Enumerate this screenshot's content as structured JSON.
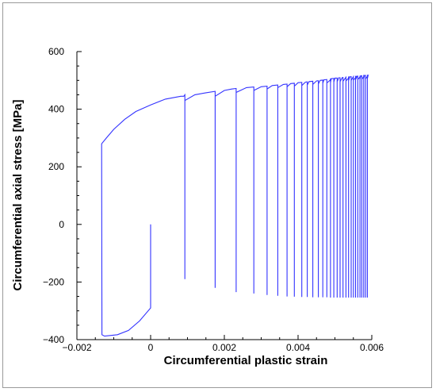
{
  "chart_data": {
    "type": "line",
    "title": "",
    "xlabel": "Circumferential plastic strain",
    "ylabel": "Circumferential axial stress [MPa]",
    "xlim": [
      -0.002,
      0.006
    ],
    "ylim": [
      -400,
      600
    ],
    "xticks": [
      -0.002,
      0,
      0.002,
      0.004,
      0.006
    ],
    "xtick_labels": [
      "−0.002",
      "0",
      "0.002",
      "0.004",
      "0.006"
    ],
    "yticks": [
      -400,
      -200,
      0,
      200,
      400,
      600
    ],
    "ytick_labels": [
      "−400",
      "−200",
      "0",
      "200",
      "400",
      "600"
    ],
    "grid": false,
    "line_color": "#3333ff",
    "series": [
      {
        "name": "",
        "points": [
          [
            0.0,
            0
          ],
          [
            0.0,
            -290
          ],
          [
            -0.0003,
            -335
          ],
          [
            -0.0006,
            -368
          ],
          [
            -0.0009,
            -383
          ],
          [
            -0.00125,
            -388
          ],
          [
            -0.00132,
            -383
          ],
          [
            -0.00133,
            280
          ],
          [
            -0.0012,
            300
          ],
          [
            -0.001,
            330
          ],
          [
            -0.0007,
            365
          ],
          [
            -0.0004,
            392
          ],
          [
            0.0,
            415
          ],
          [
            0.0004,
            435
          ],
          [
            0.00082,
            445
          ],
          [
            0.0009,
            445
          ],
          [
            0.00093,
            450
          ],
          [
            0.00093,
            -190
          ],
          [
            0.00093,
            430
          ],
          [
            0.0012,
            450
          ],
          [
            0.0015,
            457
          ],
          [
            0.00175,
            462
          ],
          [
            0.00175,
            -220
          ],
          [
            0.00175,
            445
          ],
          [
            0.002,
            465
          ],
          [
            0.0022,
            470
          ],
          [
            0.00232,
            472
          ],
          [
            0.00232,
            -235
          ],
          [
            0.00232,
            458
          ],
          [
            0.0026,
            475
          ],
          [
            0.0028,
            477
          ],
          [
            0.0028,
            -240
          ],
          [
            0.0028,
            465
          ],
          [
            0.003,
            478
          ],
          [
            0.00316,
            480
          ],
          [
            0.00316,
            -245
          ],
          [
            0.00316,
            470
          ],
          [
            0.0033,
            482
          ],
          [
            0.00345,
            484
          ],
          [
            0.00345,
            -248
          ],
          [
            0.00345,
            475
          ],
          [
            0.0036,
            486
          ],
          [
            0.0037,
            487
          ],
          [
            0.0037,
            -250
          ],
          [
            0.0037,
            478
          ],
          [
            0.0038,
            489
          ],
          [
            0.0039,
            490
          ],
          [
            0.0039,
            -251
          ],
          [
            0.0039,
            480
          ],
          [
            0.004,
            492
          ],
          [
            0.0041,
            493
          ],
          [
            0.0041,
            -252
          ],
          [
            0.0041,
            482
          ],
          [
            0.0042,
            494
          ],
          [
            0.00425,
            495
          ],
          [
            0.00425,
            -252
          ],
          [
            0.00425,
            484
          ],
          [
            0.0043,
            496
          ],
          [
            0.0044,
            497
          ],
          [
            0.0044,
            -253
          ],
          [
            0.0044,
            486
          ],
          [
            0.0045,
            498
          ],
          [
            0.00455,
            499
          ],
          [
            0.00455,
            -253
          ],
          [
            0.00455,
            488
          ],
          [
            0.0046,
            500
          ],
          [
            0.00467,
            501
          ],
          [
            0.00467,
            -253
          ],
          [
            0.00467,
            490
          ],
          [
            0.0047,
            502
          ],
          [
            0.00478,
            503
          ],
          [
            0.00478,
            -253
          ],
          [
            0.00478,
            491
          ],
          [
            0.0049,
            504
          ],
          [
            0.00488,
            505
          ],
          [
            0.00488,
            -254
          ],
          [
            0.00488,
            492
          ],
          [
            0.0049,
            506
          ],
          [
            0.00497,
            507
          ],
          [
            0.00497,
            -254
          ],
          [
            0.00497,
            494
          ],
          [
            0.005,
            508
          ],
          [
            0.00506,
            508
          ],
          [
            0.00506,
            -254
          ],
          [
            0.00506,
            495
          ],
          [
            0.0051,
            509
          ],
          [
            0.00514,
            509
          ],
          [
            0.00514,
            -254
          ],
          [
            0.00514,
            496
          ],
          [
            0.0052,
            510
          ],
          [
            0.00522,
            510
          ],
          [
            0.00522,
            -254
          ],
          [
            0.00522,
            497
          ],
          [
            0.0053,
            511
          ],
          [
            0.0053,
            511
          ],
          [
            0.0053,
            -254
          ],
          [
            0.0053,
            498
          ],
          [
            0.0054,
            512
          ],
          [
            0.00537,
            512
          ],
          [
            0.00537,
            -254
          ],
          [
            0.00537,
            499
          ],
          [
            0.0054,
            512
          ],
          [
            0.00544,
            513
          ],
          [
            0.00544,
            -254
          ],
          [
            0.00544,
            500
          ],
          [
            0.0055,
            513
          ],
          [
            0.0055,
            513
          ],
          [
            0.0055,
            -254
          ],
          [
            0.0055,
            501
          ],
          [
            0.0056,
            514
          ],
          [
            0.00556,
            514
          ],
          [
            0.00556,
            -254
          ],
          [
            0.00556,
            502
          ],
          [
            0.0056,
            514
          ],
          [
            0.00562,
            515
          ],
          [
            0.00562,
            -254
          ],
          [
            0.00562,
            503
          ],
          [
            0.0057,
            515
          ],
          [
            0.00568,
            515
          ],
          [
            0.00568,
            -254
          ],
          [
            0.00568,
            503
          ],
          [
            0.0057,
            516
          ],
          [
            0.00573,
            516
          ],
          [
            0.00573,
            -254
          ],
          [
            0.00573,
            504
          ],
          [
            0.0058,
            516
          ],
          [
            0.00578,
            517
          ],
          [
            0.00578,
            -254
          ],
          [
            0.00578,
            505
          ],
          [
            0.0058,
            517
          ],
          [
            0.00583,
            517
          ],
          [
            0.00583,
            -254
          ],
          [
            0.00583,
            505
          ],
          [
            0.0059,
            518
          ],
          [
            0.00588,
            518
          ],
          [
            0.00588,
            -254
          ],
          [
            0.00588,
            506
          ],
          [
            0.0059,
            518
          ]
        ]
      }
    ]
  }
}
